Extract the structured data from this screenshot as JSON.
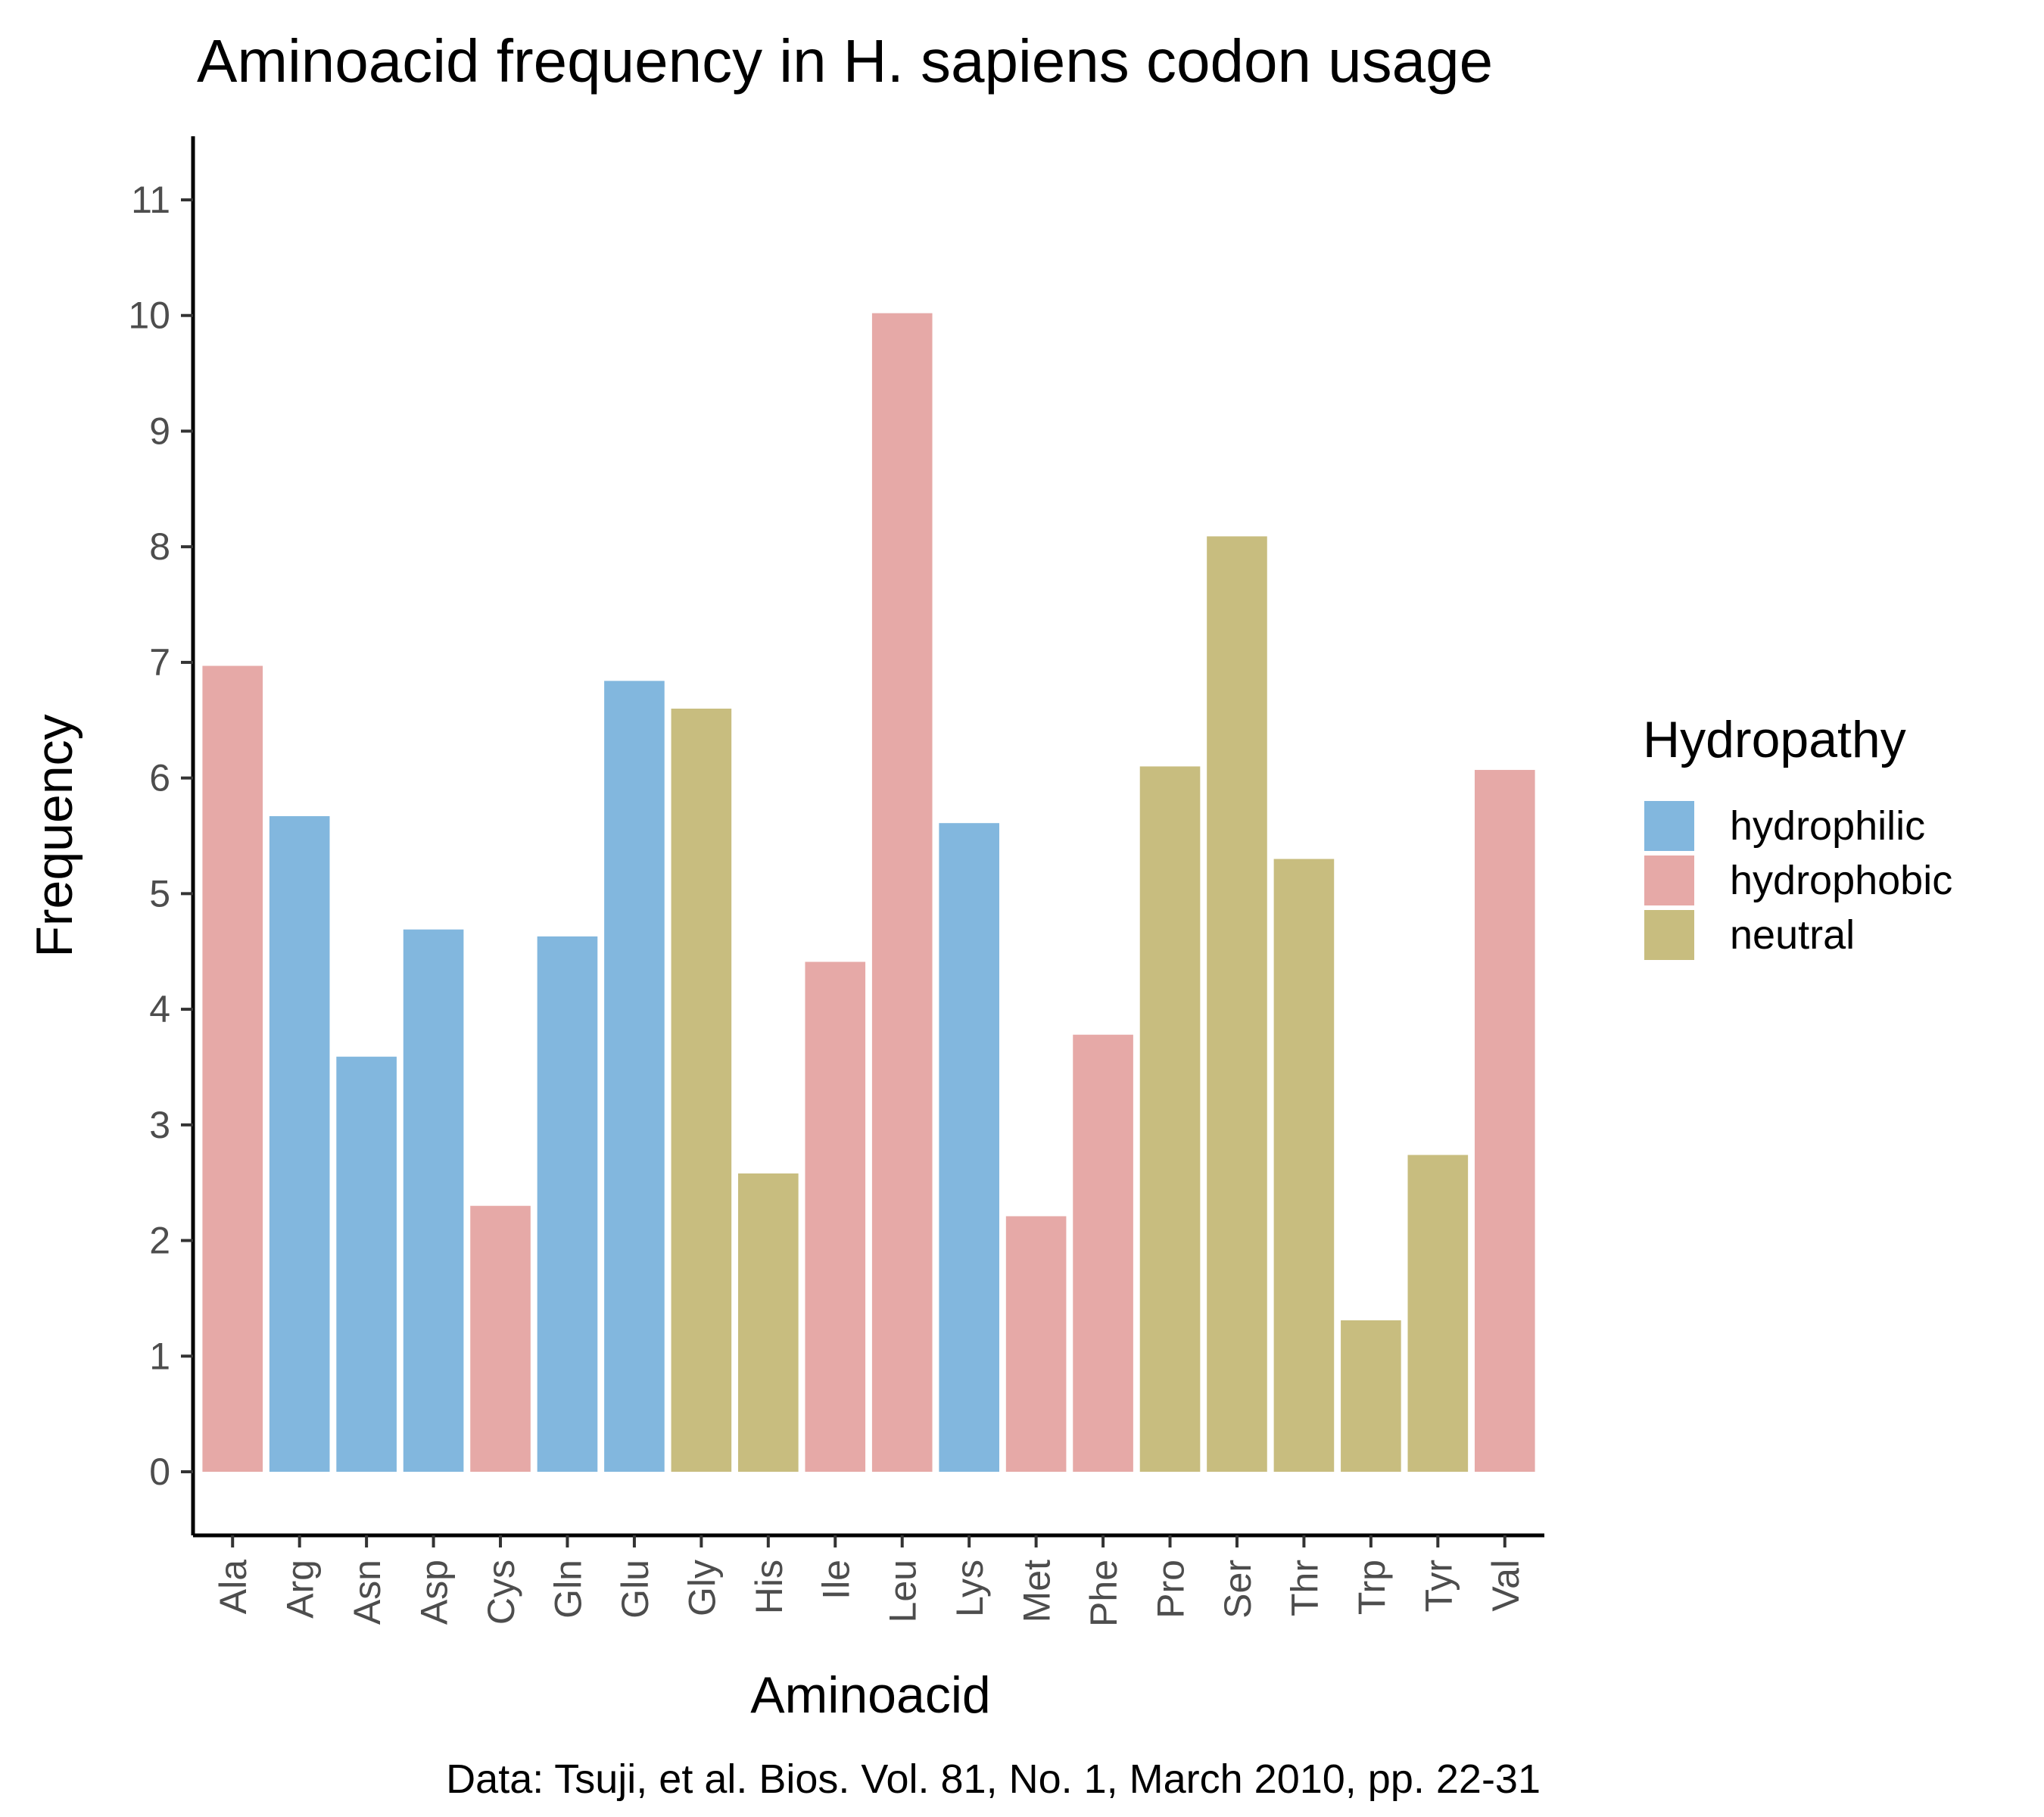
{
  "chart_data": {
    "type": "bar",
    "title": "Aminoacid frequency in H. sapiens codon usage",
    "xlabel": "Aminoacid",
    "ylabel": "Frequency",
    "caption": "Data: Tsuji, et al. Bios. Vol. 81, No. 1, March 2010, pp. 22-31",
    "ylim": [
      -0.55,
      11.55
    ],
    "yticks": [
      "0",
      "1",
      "2",
      "3",
      "4",
      "5",
      "6",
      "7",
      "8",
      "9",
      "10",
      "11"
    ],
    "categories": [
      "Ala",
      "Arg",
      "Asn",
      "Asp",
      "Cys",
      "Gln",
      "Glu",
      "Gly",
      "His",
      "Ile",
      "Leu",
      "Lys",
      "Met",
      "Phe",
      "Pro",
      "Ser",
      "Thr",
      "Trp",
      "Tyr",
      "Val"
    ],
    "values": [
      6.97,
      5.67,
      3.59,
      4.69,
      2.3,
      4.63,
      6.84,
      6.6,
      2.58,
      4.41,
      10.02,
      5.61,
      2.21,
      3.78,
      6.1,
      8.09,
      5.3,
      1.31,
      2.74,
      6.07
    ],
    "groups": [
      "hydrophobic",
      "hydrophilic",
      "hydrophilic",
      "hydrophilic",
      "hydrophobic",
      "hydrophilic",
      "hydrophilic",
      "neutral",
      "neutral",
      "hydrophobic",
      "hydrophobic",
      "hydrophilic",
      "hydrophobic",
      "hydrophobic",
      "neutral",
      "neutral",
      "neutral",
      "neutral",
      "neutral",
      "hydrophobic"
    ],
    "legend": {
      "title": "Hydropathy",
      "position": "right",
      "entries": [
        {
          "name": "hydrophilic",
          "color": "#82b7de"
        },
        {
          "name": "hydrophobic",
          "color": "#e6a9a7"
        },
        {
          "name": "neutral",
          "color": "#c8bd7f"
        }
      ]
    },
    "grid": false
  }
}
